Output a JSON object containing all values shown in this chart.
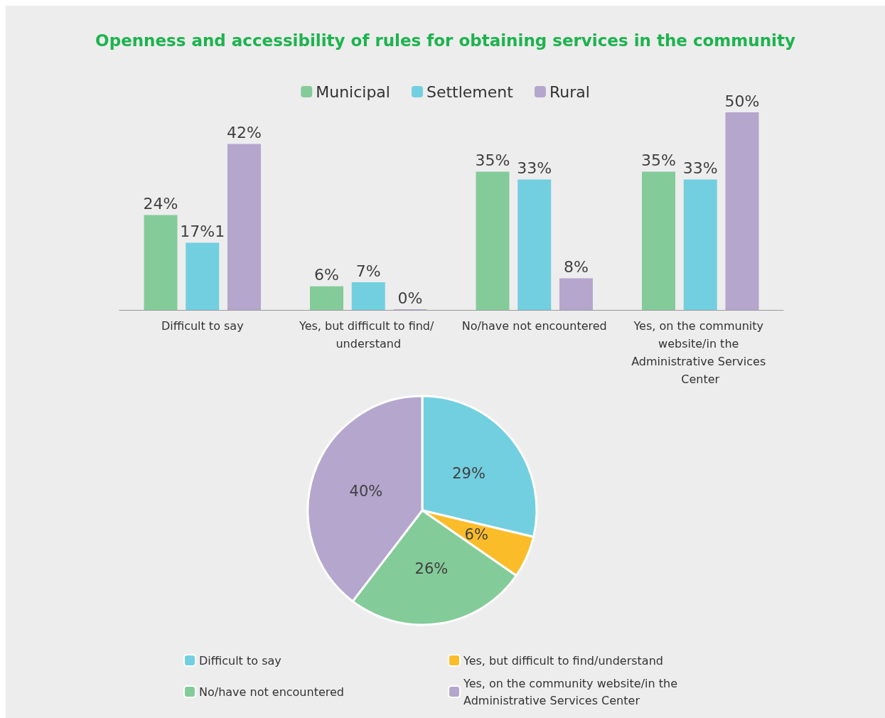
{
  "chart_data": [
    {
      "type": "bar",
      "title": "Openness and accessibility of rules for obtaining services in the community",
      "categories": [
        "Difficult to say",
        "Yes, but difficult to find/ understand",
        "No/have not encountered",
        "Yes, on the community website/in the Administrative Services Center"
      ],
      "series": [
        {
          "name": "Municipal",
          "color": "#84cb9a",
          "values": [
            24,
            6,
            35,
            35
          ],
          "value_labels": [
            "24%",
            "6%",
            "35%",
            "35%"
          ]
        },
        {
          "name": "Settlement",
          "color": "#72cfe0",
          "values": [
            17,
            7,
            33,
            33
          ],
          "value_labels": [
            "17%1",
            "7%",
            "33%",
            "33%"
          ]
        },
        {
          "name": "Rural",
          "color": "#b5a6cd",
          "values": [
            42,
            0,
            8,
            50
          ],
          "value_labels": [
            "42%",
            "0%",
            "8%",
            "50%"
          ]
        }
      ],
      "legend": "top",
      "tick_labels": "x"
    },
    {
      "type": "pie",
      "categories": [
        "Difficult to say",
        "Yes, but difficult to find/understand",
        "No/have not encountered",
        "Yes, on the community website/in the Administrative Services Center"
      ],
      "values": [
        29,
        6,
        26,
        40
      ],
      "value_labels": [
        "29%",
        "6%",
        "26%",
        "40%"
      ],
      "colors": [
        "#72cfe0",
        "#fbbc2a",
        "#84cb9a",
        "#b5a6cd"
      ],
      "legend": "bottom"
    }
  ]
}
